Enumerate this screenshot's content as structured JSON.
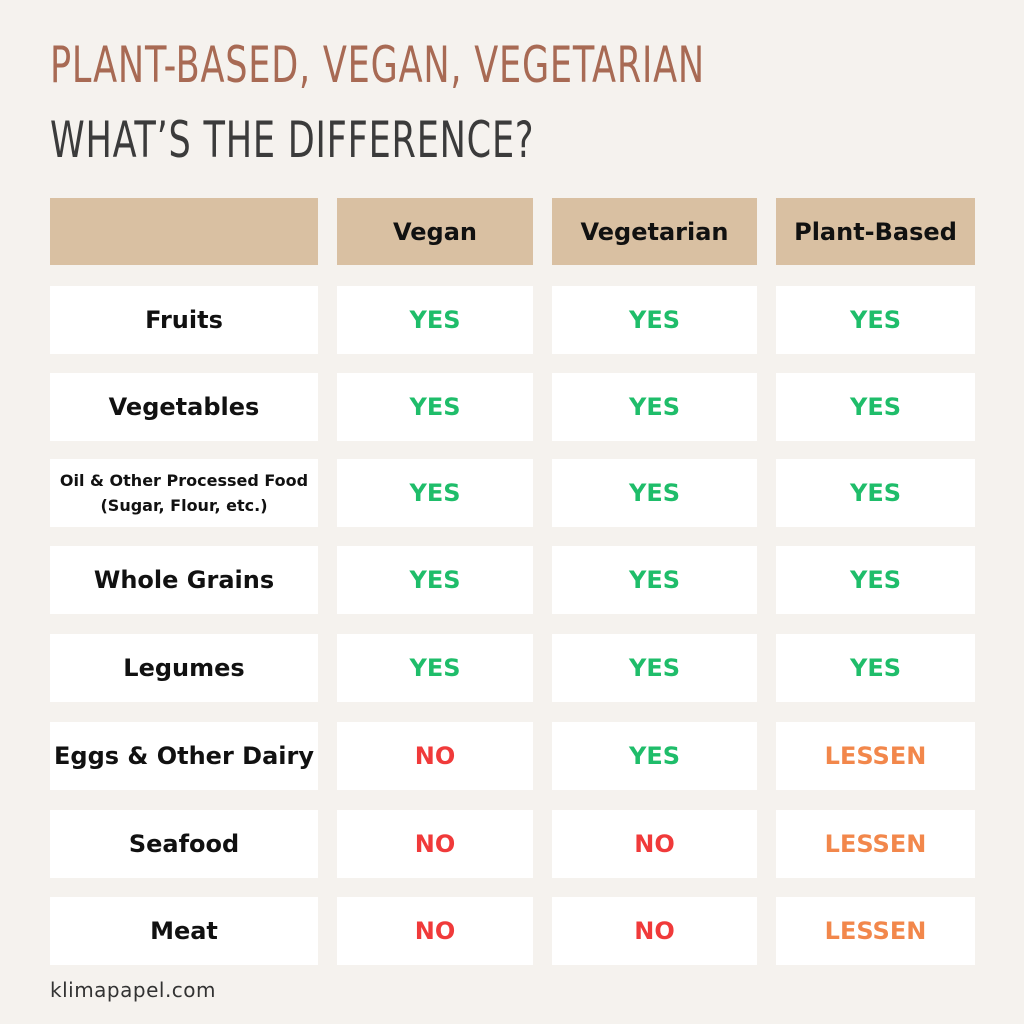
{
  "title": "PLANT-BASED, VEGAN, VEGETARIAN",
  "subtitle": "WHAT’S THE DIFFERENCE?",
  "table": {
    "columns": [
      "",
      "Vegan",
      "Vegetarian",
      "Plant-Based"
    ],
    "rows": [
      {
        "food": "Fruits",
        "values": [
          "YES",
          "YES",
          "YES"
        ]
      },
      {
        "food": "Vegetables",
        "values": [
          "YES",
          "YES",
          "YES"
        ]
      },
      {
        "food": "Oil & Other Processed Food",
        "food_line2": "(Sugar, Flour, etc.)",
        "values": [
          "YES",
          "YES",
          "YES"
        ]
      },
      {
        "food": "Whole Grains",
        "values": [
          "YES",
          "YES",
          "YES"
        ]
      },
      {
        "food": "Legumes",
        "values": [
          "YES",
          "YES",
          "YES"
        ]
      },
      {
        "food": "Eggs & Other Dairy",
        "values": [
          "NO",
          "YES",
          "LESSEN"
        ]
      },
      {
        "food": "Seafood",
        "values": [
          "NO",
          "NO",
          "LESSEN"
        ]
      },
      {
        "food": "Meat",
        "values": [
          "NO",
          "NO",
          "LESSEN"
        ]
      }
    ]
  },
  "colors": {
    "YES": "#1fbd6a",
    "NO": "#f03a3a",
    "LESSEN": "#f2874b",
    "header_bg": "#d9c0a2",
    "title": "#a86a54"
  },
  "footer": "klimapapel.com"
}
